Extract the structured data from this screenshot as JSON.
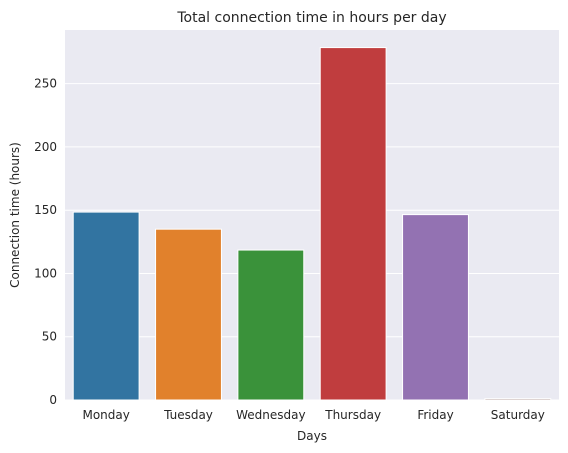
{
  "chart_data": {
    "type": "bar",
    "title": "Total connection time in hours per day",
    "xlabel": "Days",
    "ylabel": "Connection time (hours)",
    "categories": [
      "Monday",
      "Tuesday",
      "Wednesday",
      "Thursday",
      "Friday",
      "Saturday"
    ],
    "values": [
      148.5,
      135.0,
      118.5,
      278.5,
      146.5,
      1.0
    ],
    "colors": [
      "#3274a1",
      "#e1812c",
      "#3a923a",
      "#c03d3e",
      "#9372b2",
      "#845b53"
    ],
    "yticks": [
      0,
      50,
      100,
      150,
      200,
      250
    ],
    "ytick_labels": [
      "0",
      "50",
      "100",
      "150",
      "200",
      "250"
    ],
    "ylim": [
      0,
      292.4
    ],
    "grid": true,
    "background": "#eaeaf2"
  }
}
